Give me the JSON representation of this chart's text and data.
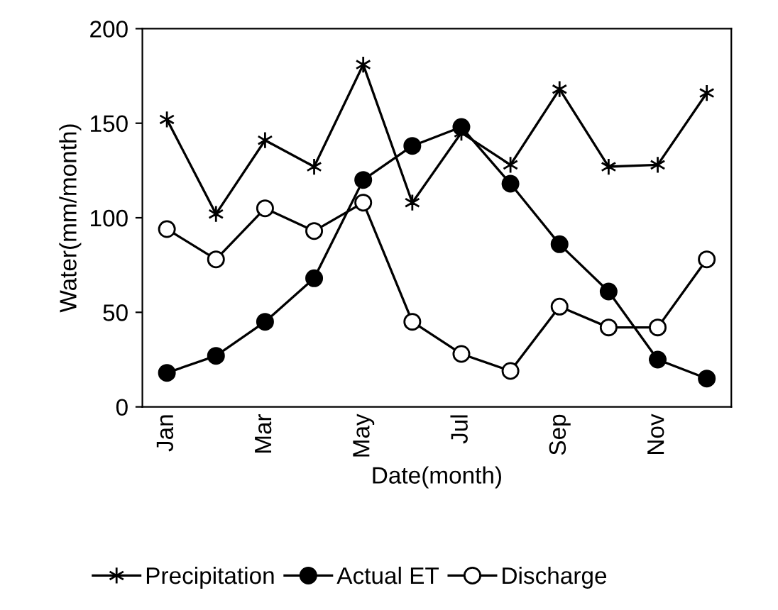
{
  "chart_data": {
    "type": "line",
    "xlabel": "Date(month)",
    "ylabel": "Water(mm/month)",
    "categories": [
      "Jan",
      null,
      "Mar",
      null,
      "May",
      null,
      "Jul",
      null,
      "Sep",
      null,
      "Nov",
      null
    ],
    "series": [
      {
        "name": "Precipitation",
        "color": "#000000",
        "marker": "cross",
        "values": [
          152,
          102,
          141,
          127,
          181,
          108,
          145,
          128,
          168,
          127,
          128,
          166
        ]
      },
      {
        "name": "Actual ET",
        "color": "#000000",
        "marker": "circle",
        "values": [
          18,
          27,
          45,
          68,
          120,
          138,
          148,
          118,
          86,
          61,
          25,
          15
        ]
      },
      {
        "name": "Discharge",
        "color": "#000000",
        "marker": "circle_open",
        "values": [
          94,
          78,
          105,
          93,
          108,
          45,
          28,
          19,
          53,
          42,
          42,
          78
        ]
      }
    ],
    "ylim": [
      0,
      200
    ],
    "yticks": [
      0,
      50,
      100,
      150,
      200
    ],
    "grid": false,
    "legend": "bottom"
  }
}
